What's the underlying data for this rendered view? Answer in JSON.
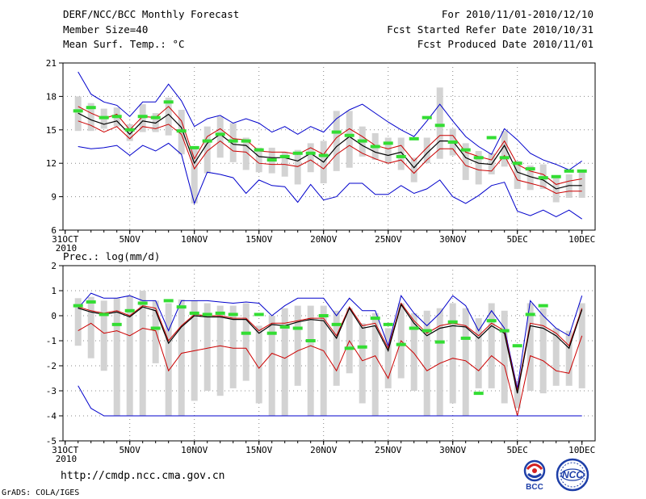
{
  "header": {
    "title": "DERF/NCC/BCC Monthly Forecast",
    "member_size": "Member Size=40",
    "variable": "Mean Surf. Temp.: °C",
    "period": "For 2010/11/01-2010/12/10",
    "started": "Fcst Started Refer Date 2010/10/31",
    "produced": "Fcst Produced Date 2010/11/01"
  },
  "footer": {
    "url": "http://cmdp.ncc.cma.gov.cn",
    "grads": "GrADS: COLA/IGES",
    "logo_bcc": "BCC",
    "logo_ncc": "NCC"
  },
  "colors": {
    "envelope": "#0000cc",
    "spread": "#cc0000",
    "mean": "#000000",
    "box": "#d3d3d3",
    "observed": "#33dd33",
    "grid": "#888888"
  },
  "chart_data": [
    {
      "type": "line",
      "title": "Mean Surf. Temp.: °C",
      "ylabel": "°C",
      "ylim": [
        6,
        21
      ],
      "yticks": [
        "6",
        "9",
        "12",
        "15",
        "18",
        "21"
      ],
      "xticks": [
        {
          "day": 0,
          "label": "31OCT",
          "sub": "2010"
        },
        {
          "day": 5,
          "label": "5NOV"
        },
        {
          "day": 10,
          "label": "10NOV"
        },
        {
          "day": 15,
          "label": "15NOV"
        },
        {
          "day": 20,
          "label": "20NOV"
        },
        {
          "day": 25,
          "label": "25NOV"
        },
        {
          "day": 30,
          "label": "30NOV"
        },
        {
          "day": 35,
          "label": "5DEC"
        },
        {
          "day": 40,
          "label": "10DEC"
        }
      ],
      "x_days": [
        1,
        2,
        3,
        4,
        5,
        6,
        7,
        8,
        9,
        10,
        11,
        12,
        13,
        14,
        15,
        16,
        17,
        18,
        19,
        20,
        21,
        22,
        23,
        24,
        25,
        26,
        27,
        28,
        29,
        30,
        31,
        32,
        33,
        34,
        35,
        36,
        37,
        38,
        39,
        40
      ],
      "series": [
        {
          "name": "max",
          "role": "envelope-high",
          "values": [
            20.2,
            18.2,
            17.5,
            17.2,
            16.2,
            17.5,
            17.5,
            19.1,
            17.6,
            15.3,
            16.0,
            16.3,
            15.6,
            16.0,
            15.6,
            14.8,
            15.3,
            14.6,
            15.3,
            14.8,
            16.0,
            16.8,
            17.3,
            16.5,
            15.7,
            15.0,
            14.4,
            15.8,
            17.3,
            15.8,
            14.4,
            13.5,
            12.8,
            15.1,
            14.1,
            12.9,
            12.3,
            11.9,
            11.4,
            12.2
          ]
        },
        {
          "name": "upper",
          "role": "spread-high",
          "values": [
            17.1,
            16.5,
            16.0,
            16.4,
            15.0,
            16.2,
            16.1,
            17.1,
            15.8,
            12.4,
            14.4,
            15.1,
            14.2,
            14.1,
            13.1,
            13.0,
            13.0,
            12.8,
            13.4,
            12.8,
            14.3,
            15.1,
            14.4,
            13.6,
            13.3,
            13.6,
            12.2,
            13.4,
            14.5,
            14.5,
            13.0,
            12.6,
            12.3,
            14.0,
            11.9,
            11.3,
            11.0,
            10.1,
            10.4,
            10.6
          ]
        },
        {
          "name": "mean",
          "role": "mean",
          "values": [
            16.5,
            15.9,
            15.5,
            15.8,
            14.6,
            15.8,
            15.6,
            16.4,
            15.2,
            12.0,
            13.8,
            14.6,
            13.7,
            13.6,
            12.6,
            12.5,
            12.5,
            12.2,
            12.9,
            12.1,
            13.5,
            14.4,
            13.6,
            13.0,
            12.7,
            13.0,
            11.6,
            12.9,
            14.0,
            14.0,
            12.5,
            12.0,
            11.9,
            13.6,
            11.2,
            10.8,
            10.5,
            9.7,
            10.0,
            10.0
          ]
        },
        {
          "name": "lower",
          "role": "spread-low",
          "values": [
            15.8,
            15.4,
            14.8,
            15.3,
            14.2,
            15.3,
            15.1,
            15.5,
            14.6,
            11.5,
            13.1,
            14.0,
            13.1,
            13.0,
            12.0,
            11.9,
            11.9,
            11.7,
            12.3,
            11.5,
            12.8,
            13.6,
            12.9,
            12.4,
            12.0,
            12.3,
            11.1,
            12.3,
            13.3,
            13.3,
            11.8,
            11.4,
            11.3,
            12.7,
            10.5,
            10.2,
            9.9,
            9.3,
            9.5,
            9.5
          ]
        },
        {
          "name": "min",
          "role": "envelope-low",
          "values": [
            13.5,
            13.3,
            13.4,
            13.6,
            12.7,
            13.6,
            13.1,
            13.8,
            12.8,
            8.4,
            11.2,
            11.0,
            10.7,
            9.3,
            10.5,
            10.0,
            9.9,
            8.5,
            10.1,
            8.7,
            9.0,
            10.2,
            10.2,
            9.2,
            9.2,
            10.0,
            9.3,
            9.7,
            10.5,
            9.0,
            8.4,
            9.1,
            10.0,
            10.3,
            7.7,
            7.3,
            7.8,
            7.2,
            7.8,
            7.0
          ]
        },
        {
          "name": "obs",
          "role": "observed",
          "values": [
            16.7,
            17.0,
            16.1,
            16.2,
            15.0,
            16.2,
            16.1,
            17.5,
            14.9,
            13.4,
            14.0,
            14.6,
            14.0,
            14.0,
            13.2,
            12.3,
            12.6,
            12.9,
            12.9,
            12.7,
            14.8,
            14.5,
            14.0,
            13.5,
            13.8,
            12.6,
            14.2,
            16.1,
            15.4,
            13.9,
            13.2,
            12.5,
            14.3,
            12.5,
            12.0,
            11.5,
            10.7,
            10.8,
            11.3,
            11.3
          ]
        }
      ],
      "boxes": [
        [
          18.0,
          14.9
        ],
        [
          17.4,
          14.9
        ],
        [
          16.9,
          15.1
        ],
        [
          17.0,
          15.3
        ],
        [
          15.5,
          14.0
        ],
        [
          17.3,
          14.8
        ],
        [
          16.5,
          14.8
        ],
        [
          17.9,
          14.5
        ],
        [
          16.8,
          12.8
        ],
        [
          13.5,
          8.4
        ],
        [
          15.3,
          11.1
        ],
        [
          16.2,
          12.5
        ],
        [
          15.6,
          12.1
        ],
        [
          14.3,
          11.4
        ],
        [
          13.4,
          11.2
        ],
        [
          13.4,
          11.1
        ],
        [
          13.0,
          10.8
        ],
        [
          13.2,
          10.1
        ],
        [
          13.8,
          11.2
        ],
        [
          14.0,
          10.2
        ],
        [
          16.7,
          11.3
        ],
        [
          16.7,
          11.6
        ],
        [
          15.3,
          12.6
        ],
        [
          14.7,
          12.3
        ],
        [
          14.3,
          12.0
        ],
        [
          14.3,
          11.4
        ],
        [
          12.5,
          10.3
        ],
        [
          14.3,
          12.0
        ],
        [
          18.8,
          12.4
        ],
        [
          15.1,
          12.7
        ],
        [
          13.8,
          10.5
        ],
        [
          13.1,
          10.1
        ],
        [
          12.9,
          11.0
        ],
        [
          14.9,
          11.7
        ],
        [
          12.2,
          9.7
        ],
        [
          11.8,
          9.6
        ],
        [
          11.9,
          9.7
        ],
        [
          10.9,
          8.5
        ],
        [
          11.0,
          8.9
        ],
        [
          11.2,
          8.9
        ]
      ]
    },
    {
      "type": "line",
      "title": "Prec.: log(mm/d)",
      "ylabel": "log(mm/d)",
      "ylim": [
        -5,
        2
      ],
      "yticks": [
        "-5",
        "-4",
        "-3",
        "-2",
        "-1",
        "0",
        "1",
        "2"
      ],
      "xticks": [
        {
          "day": 0,
          "label": "31OCT",
          "sub": "2010"
        },
        {
          "day": 5,
          "label": "5NOV"
        },
        {
          "day": 10,
          "label": "10NOV"
        },
        {
          "day": 15,
          "label": "15NOV"
        },
        {
          "day": 20,
          "label": "20NOV"
        },
        {
          "day": 25,
          "label": "25NOV"
        },
        {
          "day": 30,
          "label": "30NOV"
        },
        {
          "day": 35,
          "label": "5DEC"
        },
        {
          "day": 40,
          "label": "10DEC"
        }
      ],
      "x_days": [
        1,
        2,
        3,
        4,
        5,
        6,
        7,
        8,
        9,
        10,
        11,
        12,
        13,
        14,
        15,
        16,
        17,
        18,
        19,
        20,
        21,
        22,
        23,
        24,
        25,
        26,
        27,
        28,
        29,
        30,
        31,
        32,
        33,
        34,
        35,
        36,
        37,
        38,
        39,
        40
      ],
      "series": [
        {
          "name": "max",
          "role": "envelope-high",
          "values": [
            0.3,
            0.9,
            0.7,
            0.7,
            0.8,
            0.6,
            0.6,
            -0.6,
            0.6,
            0.6,
            0.6,
            0.55,
            0.5,
            0.55,
            0.5,
            0.0,
            0.4,
            0.7,
            0.7,
            0.7,
            0.0,
            0.7,
            0.2,
            0.2,
            -1.2,
            0.8,
            0.1,
            -0.4,
            0.1,
            0.8,
            0.4,
            -0.6,
            0.2,
            -0.5,
            -2.9,
            0.6,
            0.0,
            -0.5,
            -0.8,
            0.8
          ]
        },
        {
          "name": "upper",
          "role": "spread-high",
          "values": [
            0.35,
            0.2,
            0.1,
            0.2,
            0.0,
            0.4,
            0.3,
            -1.0,
            -0.4,
            0.05,
            0.0,
            0.0,
            -0.1,
            -0.1,
            -0.6,
            -0.3,
            -0.3,
            -0.2,
            -0.1,
            -0.1,
            -0.8,
            0.35,
            -0.4,
            -0.3,
            -1.3,
            0.5,
            -0.2,
            -0.7,
            -0.4,
            -0.3,
            -0.4,
            -0.8,
            -0.3,
            -0.6,
            -3.0,
            -0.3,
            -0.4,
            -0.7,
            -1.2,
            0.3
          ]
        },
        {
          "name": "mean",
          "role": "mean",
          "values": [
            0.3,
            0.15,
            0.05,
            0.15,
            -0.05,
            0.35,
            0.2,
            -1.1,
            -0.45,
            0.0,
            -0.05,
            -0.05,
            -0.15,
            -0.15,
            -0.7,
            -0.35,
            -0.4,
            -0.25,
            -0.15,
            -0.2,
            -0.9,
            0.3,
            -0.5,
            -0.4,
            -1.4,
            0.45,
            -0.3,
            -0.8,
            -0.5,
            -0.4,
            -0.45,
            -0.9,
            -0.4,
            -0.7,
            -3.1,
            -0.4,
            -0.5,
            -0.8,
            -1.3,
            0.25
          ]
        },
        {
          "name": "lower",
          "role": "spread-low",
          "values": [
            -0.6,
            -0.3,
            -0.7,
            -0.6,
            -0.8,
            -0.5,
            -0.6,
            -2.2,
            -1.5,
            -1.4,
            -1.3,
            -1.2,
            -1.3,
            -1.3,
            -2.1,
            -1.5,
            -1.7,
            -1.4,
            -1.2,
            -1.4,
            -2.2,
            -1.0,
            -1.8,
            -1.6,
            -2.5,
            -1.0,
            -1.5,
            -2.2,
            -1.9,
            -1.7,
            -1.8,
            -2.2,
            -1.6,
            -2.0,
            -4.0,
            -1.6,
            -1.8,
            -2.2,
            -2.3,
            -0.8
          ]
        },
        {
          "name": "min",
          "role": "envelope-low",
          "values": [
            -2.8,
            -3.7,
            -4.0,
            -4.0,
            -4.0,
            -4.0,
            -4.0,
            -4.0,
            -4.0,
            -4.0,
            -4.0,
            -4.0,
            -4.0,
            -4.0,
            -4.0,
            -4.0,
            -4.0,
            -4.0,
            -4.0,
            -4.0,
            -4.0,
            -4.0,
            -4.0,
            -4.0,
            -4.0,
            -4.0,
            -4.0,
            -4.0,
            -4.0,
            -4.0,
            -4.0,
            -4.0,
            -4.0,
            -4.0,
            -4.0,
            -4.0,
            -4.0,
            -4.0,
            -4.0,
            -4.0
          ]
        },
        {
          "name": "obs",
          "role": "observed",
          "values": [
            0.4,
            0.55,
            0.05,
            -0.35,
            0.2,
            0.5,
            -0.5,
            0.6,
            0.35,
            0.1,
            0.05,
            0.1,
            0.05,
            -0.7,
            0.05,
            -0.7,
            -0.45,
            -0.5,
            -1.0,
            0.0,
            -0.35,
            -1.3,
            -1.25,
            -0.1,
            -0.35,
            -1.15,
            -0.5,
            -0.6,
            -1.05,
            -0.25,
            -0.9,
            -3.1,
            -0.2,
            -0.6,
            -1.2,
            0.05,
            0.4,
            null,
            null,
            null
          ]
        }
      ],
      "boxes": [
        [
          0.7,
          -1.2
        ],
        [
          0.75,
          -1.7
        ],
        [
          0.6,
          -2.2
        ],
        [
          0.7,
          -4.0
        ],
        [
          0.8,
          -4.0
        ],
        [
          1.0,
          -4.0
        ],
        [
          0.6,
          -1.9
        ],
        [
          0.5,
          -4.0
        ],
        [
          0.65,
          -4.0
        ],
        [
          0.6,
          -3.4
        ],
        [
          0.5,
          -3.0
        ],
        [
          0.4,
          -3.2
        ],
        [
          0.4,
          -2.9
        ],
        [
          0.5,
          -2.6
        ],
        [
          -0.4,
          -3.5
        ],
        [
          0.0,
          -4.0
        ],
        [
          0.3,
          -4.0
        ],
        [
          0.4,
          -2.8
        ],
        [
          0.4,
          -4.0
        ],
        [
          0.4,
          -4.0
        ],
        [
          0.2,
          -2.8
        ],
        [
          0.3,
          -2.3
        ],
        [
          -0.3,
          -3.5
        ],
        [
          0.1,
          -4.0
        ],
        [
          -0.5,
          -2.9
        ],
        [
          0.5,
          -2.5
        ],
        [
          0.1,
          -3.0
        ],
        [
          0.2,
          -4.0
        ],
        [
          0.3,
          -4.0
        ],
        [
          0.5,
          -3.5
        ],
        [
          0.3,
          -4.0
        ],
        [
          -0.1,
          -2.9
        ],
        [
          0.5,
          -2.9
        ],
        [
          0.2,
          -3.5
        ],
        [
          -2.6,
          -3.7
        ],
        [
          0.5,
          -3.0
        ],
        [
          0.3,
          -3.1
        ],
        [
          -0.5,
          -2.8
        ],
        [
          -0.6,
          -2.8
        ],
        [
          0.5,
          -2.9
        ]
      ]
    }
  ]
}
